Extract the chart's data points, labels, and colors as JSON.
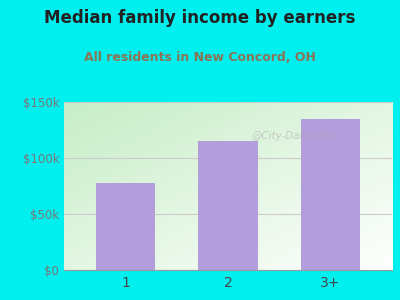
{
  "title": "Median family income by earners",
  "subtitle": "All residents in New Concord, OH",
  "title_color": "#222222",
  "subtitle_color": "#8B7355",
  "categories": [
    "1",
    "2",
    "3+"
  ],
  "values": [
    78000,
    115000,
    135000
  ],
  "bar_color": "#b39ddb",
  "background_outer": "#00EFEF",
  "gradient_left": "#cce8cc",
  "gradient_right": "#f8fff8",
  "ylim": [
    0,
    150000
  ],
  "yticks": [
    0,
    50000,
    100000,
    150000
  ],
  "ytick_labels": [
    "$0",
    "$50k",
    "$100k",
    "$150k"
  ],
  "watermark": "@City-Data.com",
  "figsize": [
    4.0,
    3.0
  ],
  "dpi": 100
}
